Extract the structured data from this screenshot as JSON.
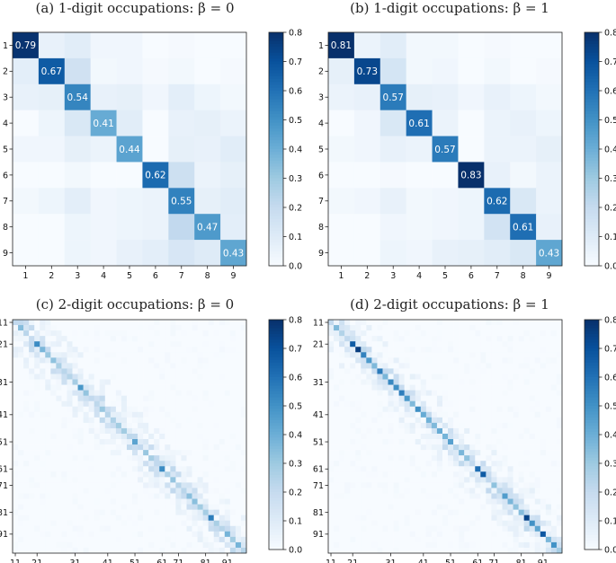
{
  "colormap": {
    "name": "Blues",
    "stops": [
      "#f7fbff",
      "#deebf7",
      "#c6dbef",
      "#9ecae1",
      "#6baed6",
      "#4292c6",
      "#2171b5",
      "#08519c",
      "#08306b"
    ],
    "vmin": 0.0,
    "vmax": 0.8
  },
  "colorbar_ticks": [
    "0.0",
    "0.1",
    "0.2",
    "0.3",
    "0.4",
    "0.5",
    "0.6",
    "0.7",
    "0.8"
  ],
  "chart_data": [
    {
      "type": "heatmap",
      "title": "(a) 1-digit occupations: β = 0",
      "xlabels": [
        "1",
        "2",
        "3",
        "4",
        "5",
        "6",
        "7",
        "8",
        "9"
      ],
      "ylabels": [
        "1",
        "2",
        "3",
        "4",
        "5",
        "6",
        "7",
        "8",
        "9"
      ],
      "annotated_diagonal": true,
      "matrix": [
        [
          0.79,
          0.06,
          0.09,
          0.03,
          0.03,
          0.0,
          0.01,
          0.0,
          0.0
        ],
        [
          0.08,
          0.67,
          0.16,
          0.02,
          0.03,
          0.01,
          0.02,
          0.0,
          0.01
        ],
        [
          0.06,
          0.07,
          0.54,
          0.06,
          0.07,
          0.03,
          0.08,
          0.04,
          0.02
        ],
        [
          0.0,
          0.04,
          0.12,
          0.41,
          0.09,
          0.0,
          0.06,
          0.07,
          0.05
        ],
        [
          0.03,
          0.03,
          0.07,
          0.05,
          0.44,
          0.0,
          0.07,
          0.06,
          0.09
        ],
        [
          0.0,
          0.0,
          0.02,
          0.0,
          0.0,
          0.62,
          0.17,
          0.05,
          0.07
        ],
        [
          0.02,
          0.04,
          0.08,
          0.03,
          0.04,
          0.05,
          0.55,
          0.07,
          0.09
        ],
        [
          0.0,
          0.0,
          0.04,
          0.03,
          0.04,
          0.05,
          0.21,
          0.47,
          0.08
        ],
        [
          0.0,
          0.0,
          0.04,
          0.03,
          0.06,
          0.08,
          0.13,
          0.1,
          0.43
        ]
      ],
      "colorbar": {
        "min": 0.0,
        "max": 0.8
      }
    },
    {
      "type": "heatmap",
      "title": "(b) 1-digit occupations: β = 1",
      "xlabels": [
        "1",
        "2",
        "3",
        "4",
        "5",
        "6",
        "7",
        "8",
        "9"
      ],
      "ylabels": [
        "1",
        "2",
        "3",
        "4",
        "5",
        "6",
        "7",
        "8",
        "9"
      ],
      "annotated_diagonal": true,
      "matrix": [
        [
          0.81,
          0.05,
          0.09,
          0.02,
          0.02,
          0.0,
          0.01,
          0.0,
          0.0
        ],
        [
          0.07,
          0.73,
          0.14,
          0.02,
          0.03,
          0.0,
          0.02,
          0.0,
          0.01
        ],
        [
          0.05,
          0.06,
          0.57,
          0.07,
          0.06,
          0.03,
          0.06,
          0.04,
          0.02
        ],
        [
          0.0,
          0.03,
          0.12,
          0.61,
          0.05,
          0.0,
          0.05,
          0.06,
          0.04
        ],
        [
          0.02,
          0.03,
          0.06,
          0.05,
          0.57,
          0.0,
          0.05,
          0.05,
          0.07
        ],
        [
          0.0,
          0.0,
          0.01,
          0.0,
          0.0,
          0.83,
          0.06,
          0.02,
          0.05
        ],
        [
          0.02,
          0.03,
          0.06,
          0.02,
          0.03,
          0.04,
          0.62,
          0.12,
          0.05
        ],
        [
          0.0,
          0.0,
          0.03,
          0.02,
          0.03,
          0.04,
          0.15,
          0.61,
          0.06
        ],
        [
          0.0,
          0.0,
          0.04,
          0.03,
          0.06,
          0.07,
          0.09,
          0.12,
          0.43
        ]
      ],
      "colorbar": {
        "min": 0.0,
        "max": 0.8
      }
    },
    {
      "type": "heatmap",
      "title": "(c) 2-digit occupations: β = 0",
      "size": 43,
      "tick_labels": [
        "11",
        "21",
        "31",
        "41",
        "51",
        "61",
        "71",
        "81",
        "91"
      ],
      "tick_indices": [
        0,
        4,
        11,
        17,
        22,
        27,
        30,
        35,
        39
      ],
      "diagonal": [
        0.21,
        0.35,
        0.23,
        0.2,
        0.52,
        0.37,
        0.31,
        0.33,
        0.27,
        0.23,
        0.24,
        0.28,
        0.48,
        0.32,
        0.21,
        0.22,
        0.31,
        0.24,
        0.26,
        0.29,
        0.29,
        0.22,
        0.44,
        0.21,
        0.31,
        0.28,
        0.21,
        0.52,
        0.26,
        0.32,
        0.24,
        0.23,
        0.34,
        0.34,
        0.29,
        0.28,
        0.56,
        0.27,
        0.24,
        0.38,
        0.29,
        0.38,
        0.24
      ],
      "colorbar": {
        "min": 0.0,
        "max": 0.8
      }
    },
    {
      "type": "heatmap",
      "title": "(d) 2-digit occupations: β = 1",
      "size": 43,
      "tick_labels": [
        "11",
        "21",
        "31",
        "41",
        "51",
        "61",
        "71",
        "81",
        "91"
      ],
      "tick_indices": [
        0,
        4,
        11,
        17,
        22,
        27,
        30,
        35,
        39
      ],
      "diagonal": [
        0.21,
        0.36,
        0.25,
        0.21,
        0.67,
        0.76,
        0.55,
        0.47,
        0.36,
        0.57,
        0.37,
        0.53,
        0.51,
        0.56,
        0.48,
        0.36,
        0.51,
        0.41,
        0.39,
        0.36,
        0.41,
        0.38,
        0.45,
        0.23,
        0.37,
        0.33,
        0.21,
        0.61,
        0.67,
        0.21,
        0.33,
        0.23,
        0.46,
        0.37,
        0.33,
        0.35,
        0.74,
        0.5,
        0.43,
        0.68,
        0.37,
        0.5,
        0.28
      ],
      "colorbar": {
        "min": 0.0,
        "max": 0.8
      }
    }
  ]
}
